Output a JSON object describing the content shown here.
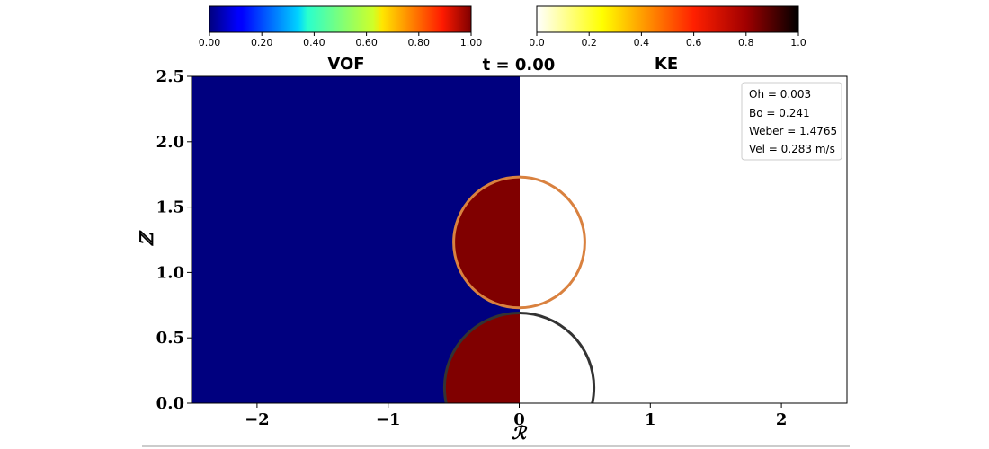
{
  "chart_data": {
    "type": "heatmap",
    "title": "t = 0.00",
    "xlabel": "ℛ",
    "ylabel": "ℤ",
    "xlim": [
      -2.5,
      2.5
    ],
    "ylim": [
      0,
      2.5
    ],
    "xticks": [
      -2,
      -1,
      0,
      1,
      2
    ],
    "xtick_labels": [
      "−2",
      "−1",
      "0",
      "1",
      "2"
    ],
    "yticks": [
      0,
      0.5,
      1.0,
      1.5,
      2.0,
      2.5
    ],
    "ytick_labels": [
      "0.0",
      "0.5",
      "1.0",
      "1.5",
      "2.0",
      "2.5"
    ],
    "left_field": {
      "name": "VOF",
      "background_value": 0.0,
      "drop_value": 1.0
    },
    "right_field": {
      "name": "KE",
      "background_value": 0.0
    },
    "interfaces": [
      {
        "name": "falling drop",
        "center": [
          0,
          1.23
        ],
        "radius": 0.5,
        "color": "#d9813f"
      },
      {
        "name": "sessile drop",
        "center": [
          0,
          0.12
        ],
        "radius": 0.57,
        "color": "#333333"
      }
    ],
    "colorbars": [
      {
        "name": "VOF",
        "colormap": "jet",
        "range": [
          0,
          1
        ],
        "ticks": [
          0,
          0.2,
          0.4,
          0.6,
          0.8,
          1.0
        ],
        "tick_labels": [
          "0.00",
          "0.20",
          "0.40",
          "0.60",
          "0.80",
          "1.00"
        ],
        "label": "VOF"
      },
      {
        "name": "KE",
        "colormap": "hot_r",
        "range": [
          0,
          1
        ],
        "ticks": [
          0,
          0.2,
          0.4,
          0.6,
          0.8,
          1.0
        ],
        "tick_labels": [
          "0.0",
          "0.2",
          "0.4",
          "0.6",
          "0.8",
          "1.0"
        ],
        "label": "KE"
      }
    ],
    "legend_placement": "top-right",
    "legend": [
      "Oh = 0.003",
      "Bo = 0.241",
      "Weber = 1.4765",
      "Vel = 0.283 m/s"
    ],
    "grid": false
  },
  "colors": {
    "vof_low": "#00007f",
    "vof_high": "#800000",
    "ke_low": "#ffffff",
    "axis": "#000000"
  }
}
